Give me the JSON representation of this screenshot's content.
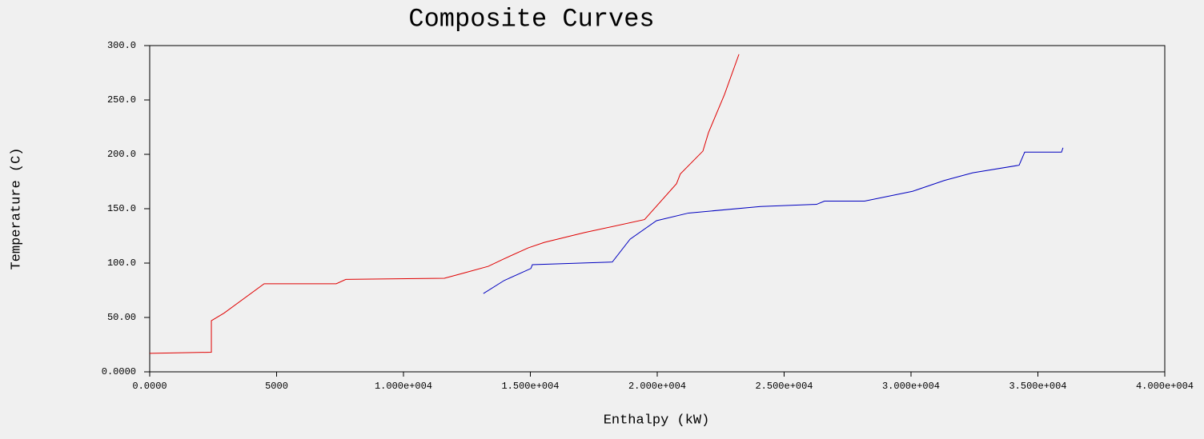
{
  "chart_data": {
    "type": "line",
    "title": "Composite Curves",
    "x_label": "Enthalpy (kW)",
    "y_label": "Temperature (C)",
    "xlim": [
      0,
      40000
    ],
    "ylim": [
      0,
      300
    ],
    "xticks": [
      {
        "value": 0,
        "label": "0.0000"
      },
      5000,
      {
        "value": 10000,
        "label": "1.000e+004"
      },
      {
        "value": 15000,
        "label": "1.500e+004"
      },
      {
        "value": 20000,
        "label": "2.000e+004"
      },
      {
        "value": 25000,
        "label": "2.500e+004"
      },
      {
        "value": 30000,
        "label": "3.000e+004"
      },
      {
        "value": 35000,
        "label": "3.500e+004"
      },
      {
        "value": 40000,
        "label": "4.000e+004"
      }
    ],
    "yticks": [
      {
        "value": 0,
        "label": "0.0000"
      },
      {
        "value": 50,
        "label": "50.00"
      },
      {
        "value": 100,
        "label": "100.0"
      },
      {
        "value": 150,
        "label": "150.0"
      },
      {
        "value": 200,
        "label": "200.0"
      },
      {
        "value": 250,
        "label": "250.0"
      },
      {
        "value": 300,
        "label": "300.0"
      }
    ],
    "series": [
      {
        "color": "#e00000",
        "x": [
          0,
          2430,
          2430,
          2930,
          4510,
          7350,
          7730,
          11610,
          12400,
          13340,
          13970,
          14920,
          15550,
          17130,
          19500,
          20760,
          20910,
          21800,
          22020,
          22650,
          23220
        ],
        "values": [
          17,
          18,
          47,
          54,
          81,
          81,
          85,
          86,
          91,
          97,
          104,
          114,
          119,
          128,
          140,
          173,
          182,
          203,
          220,
          255,
          292
        ]
      },
      {
        "color": "#0000c0",
        "x": [
          13150,
          13970,
          15020,
          15080,
          18230,
          18930,
          19970,
          21230,
          24070,
          26280,
          26590,
          28170,
          30060,
          31320,
          32430,
          34260,
          34480,
          35930,
          35990
        ],
        "values": [
          72,
          84,
          95,
          98.5,
          101,
          122,
          139,
          146,
          152,
          154,
          157,
          157,
          166,
          176,
          183,
          190,
          202,
          202,
          206
        ]
      }
    ]
  }
}
